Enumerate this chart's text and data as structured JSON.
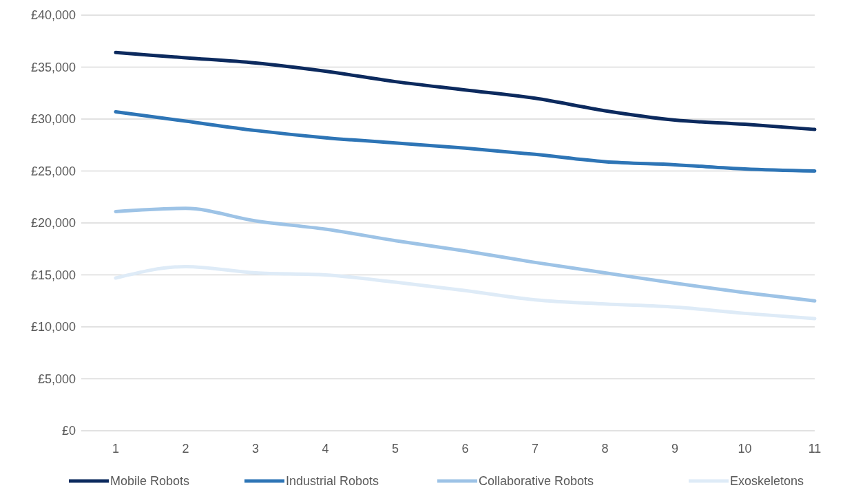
{
  "chart_data": {
    "type": "line",
    "categories": [
      "1",
      "2",
      "3",
      "4",
      "5",
      "6",
      "7",
      "8",
      "9",
      "10",
      "11"
    ],
    "series": [
      {
        "name": "Mobile Robots",
        "color": "#0c2a5e",
        "values": [
          36400,
          35900,
          35400,
          34600,
          33600,
          32800,
          32000,
          30800,
          29900,
          29500,
          29000
        ]
      },
      {
        "name": "Industrial Robots",
        "color": "#2e75b6",
        "values": [
          30700,
          29800,
          28900,
          28200,
          27700,
          27200,
          26600,
          25900,
          25600,
          25200,
          25000
        ]
      },
      {
        "name": "Collaborative Robots",
        "color": "#9dc3e6",
        "values": [
          21100,
          21400,
          20200,
          19400,
          18300,
          17300,
          16200,
          15200,
          14200,
          13300,
          12500
        ]
      },
      {
        "name": "Exoskeletons",
        "color": "#deebf7",
        "values": [
          14700,
          15800,
          15200,
          15000,
          14300,
          13500,
          12600,
          12200,
          11900,
          11300,
          10800
        ]
      }
    ],
    "ylim": [
      0,
      40000
    ],
    "yticks": [
      {
        "value": 0,
        "label": "£0"
      },
      {
        "value": 5000,
        "label": "£5,000"
      },
      {
        "value": 10000,
        "label": "£10,000"
      },
      {
        "value": 15000,
        "label": "£15,000"
      },
      {
        "value": 20000,
        "label": "£20,000"
      },
      {
        "value": 25000,
        "label": "£25,000"
      },
      {
        "value": 30000,
        "label": "£30,000"
      },
      {
        "value": 35000,
        "label": "£35,000"
      },
      {
        "value": 40000,
        "label": "£40,000"
      }
    ],
    "grid": "y",
    "legend": "bottom",
    "line_style": "solid"
  }
}
